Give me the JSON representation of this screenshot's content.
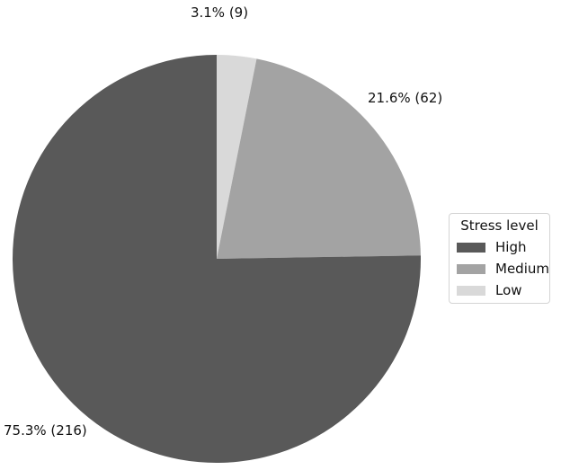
{
  "chart_data": {
    "type": "pie",
    "title": "",
    "slices": [
      {
        "name": "Low",
        "value": 9,
        "percent": 3.1,
        "label": "3.1% (9)",
        "color": "#d9d9d9"
      },
      {
        "name": "Medium",
        "value": 62,
        "percent": 21.6,
        "label": "21.6% (62)",
        "color": "#a3a3a3"
      },
      {
        "name": "High",
        "value": 216,
        "percent": 75.3,
        "label": "75.3% (216)",
        "color": "#595959"
      }
    ],
    "start": "top, clockwise",
    "legend": {
      "title": "Stress level",
      "placement": "right",
      "entries": [
        {
          "label": "High",
          "color": "#595959"
        },
        {
          "label": "Medium",
          "color": "#a3a3a3"
        },
        {
          "label": "Low",
          "color": "#d9d9d9"
        }
      ]
    }
  }
}
